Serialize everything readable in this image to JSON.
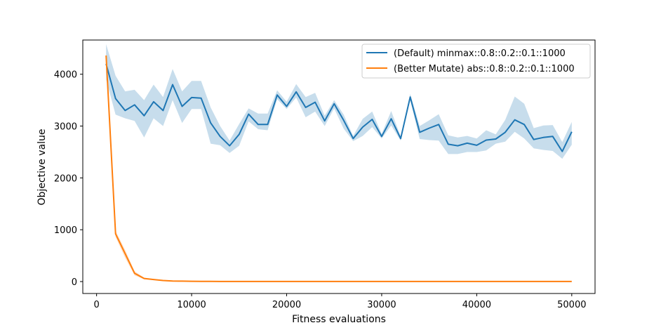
{
  "chart_data": {
    "type": "line",
    "title": "",
    "xlabel": "Fitness evaluations",
    "ylabel": "Objective value",
    "xlim": [
      -1450,
      52450
    ],
    "ylim": [
      -230,
      4660
    ],
    "xticks": [
      0,
      10000,
      20000,
      30000,
      40000,
      50000
    ],
    "yticks": [
      0,
      1000,
      2000,
      3000,
      4000
    ],
    "grid": false,
    "legend_position": "top-right",
    "x": [
      1000,
      2000,
      3000,
      4000,
      5000,
      6000,
      7000,
      8000,
      9000,
      10000,
      11000,
      12000,
      13000,
      14000,
      15000,
      16000,
      17000,
      18000,
      19000,
      20000,
      21000,
      22000,
      23000,
      24000,
      25000,
      26000,
      27000,
      28000,
      29000,
      30000,
      31000,
      32000,
      33000,
      34000,
      35000,
      36000,
      37000,
      38000,
      39000,
      40000,
      41000,
      42000,
      43000,
      44000,
      45000,
      46000,
      47000,
      48000,
      49000,
      50000
    ],
    "series": [
      {
        "name": "(Default) minmax::0.8::0.2::0.1::1000",
        "color": "#1f77b4",
        "values": [
          4200,
          3530,
          3300,
          3410,
          3200,
          3470,
          3300,
          3800,
          3380,
          3550,
          3540,
          3060,
          2800,
          2620,
          2840,
          3230,
          3030,
          3030,
          3600,
          3380,
          3660,
          3360,
          3460,
          3100,
          3430,
          3110,
          2760,
          2980,
          3130,
          2800,
          3140,
          2760,
          3560,
          2880,
          2960,
          3030,
          2650,
          2620,
          2670,
          2630,
          2730,
          2750,
          2880,
          3120,
          3030,
          2740,
          2780,
          2800,
          2510,
          2890
        ],
        "lower": [
          3900,
          3220,
          3150,
          3100,
          2780,
          3150,
          3000,
          3500,
          3060,
          3330,
          3330,
          2660,
          2630,
          2480,
          2620,
          3090,
          2940,
          2920,
          3520,
          3330,
          3550,
          3170,
          3280,
          3000,
          3340,
          2950,
          2710,
          2810,
          2980,
          2760,
          3010,
          2720,
          3500,
          2750,
          2730,
          2720,
          2460,
          2460,
          2500,
          2500,
          2530,
          2660,
          2700,
          2890,
          2760,
          2570,
          2540,
          2520,
          2370,
          2640
        ],
        "upper": [
          4580,
          3970,
          3670,
          3700,
          3500,
          3800,
          3560,
          4100,
          3670,
          3870,
          3870,
          3360,
          3000,
          2720,
          3040,
          3340,
          3240,
          3240,
          3690,
          3470,
          3810,
          3560,
          3640,
          3200,
          3500,
          3220,
          2810,
          3140,
          3280,
          2850,
          3290,
          2800,
          3620,
          3000,
          3110,
          3230,
          2820,
          2780,
          2810,
          2760,
          2920,
          2840,
          3120,
          3570,
          3430,
          2960,
          3010,
          3020,
          2690,
          3080
        ]
      },
      {
        "name": "(Better Mutate) abs::0.8::0.2::0.1::1000",
        "color": "#ff7f0e",
        "values": [
          4360,
          920,
          540,
          160,
          60,
          40,
          20,
          10,
          8,
          6,
          4,
          3,
          2,
          2,
          2,
          2,
          2,
          2,
          2,
          2,
          2,
          2,
          2,
          2,
          2,
          2,
          2,
          2,
          2,
          2,
          2,
          2,
          2,
          2,
          2,
          2,
          2,
          2,
          2,
          2,
          2,
          2,
          2,
          2,
          2,
          2,
          2,
          2,
          2,
          2
        ],
        "lower": [
          4300,
          860,
          460,
          120,
          45,
          30,
          15,
          7,
          5,
          4,
          3,
          2,
          1,
          1,
          1,
          1,
          1,
          1,
          1,
          1,
          1,
          1,
          1,
          1,
          1,
          1,
          1,
          1,
          1,
          1,
          1,
          1,
          1,
          1,
          1,
          1,
          1,
          1,
          1,
          1,
          1,
          1,
          1,
          1,
          1,
          1,
          1,
          1,
          1,
          1
        ],
        "upper": [
          4420,
          980,
          610,
          200,
          75,
          50,
          25,
          13,
          11,
          8,
          5,
          4,
          3,
          3,
          3,
          3,
          3,
          3,
          3,
          3,
          3,
          3,
          3,
          3,
          3,
          3,
          3,
          3,
          3,
          3,
          3,
          3,
          3,
          3,
          3,
          3,
          3,
          3,
          3,
          3,
          3,
          3,
          3,
          3,
          3,
          3,
          3,
          3,
          3,
          3
        ]
      }
    ]
  }
}
